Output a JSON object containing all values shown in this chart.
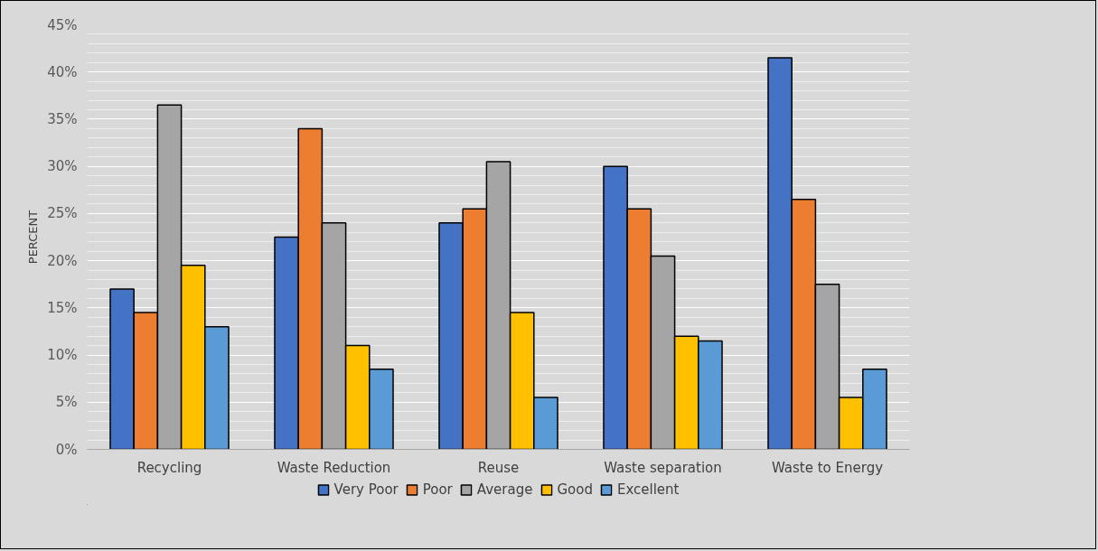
{
  "chart_data": {
    "type": "bar",
    "ylabel": "PERCENT",
    "categories": [
      "Recycling",
      "Waste Reduction",
      "Reuse",
      "Waste separation",
      "Waste to Energy"
    ],
    "series": [
      {
        "name": "Very Poor",
        "color": "#4472c4",
        "values": [
          17,
          22.5,
          24,
          30,
          41.5
        ]
      },
      {
        "name": "Poor",
        "color": "#ed7d31",
        "values": [
          14.5,
          34,
          25.5,
          25.5,
          26.5
        ]
      },
      {
        "name": "Average",
        "color": "#a5a5a5",
        "values": [
          36.5,
          24,
          30.5,
          20.5,
          17.5
        ]
      },
      {
        "name": "Good",
        "color": "#ffc000",
        "values": [
          19.5,
          11,
          14.5,
          12,
          5.5
        ]
      },
      {
        "name": "Excellent",
        "color": "#5b9bd5",
        "values": [
          13,
          8.5,
          5.5,
          11.5,
          8.5
        ]
      }
    ],
    "ylim": [
      0,
      45
    ],
    "yticks": [
      {
        "value": 0,
        "label": "0%"
      },
      {
        "value": 5,
        "label": "5%"
      },
      {
        "value": 10,
        "label": "10%"
      },
      {
        "value": 15,
        "label": "15%"
      },
      {
        "value": 20,
        "label": "20%"
      },
      {
        "value": 25,
        "label": "25%"
      },
      {
        "value": 30,
        "label": "30%"
      },
      {
        "value": 35,
        "label": "35%"
      },
      {
        "value": 40,
        "label": "40%"
      },
      {
        "value": 45,
        "label": "45%"
      }
    ],
    "grid": "y",
    "legend": "bottom"
  }
}
